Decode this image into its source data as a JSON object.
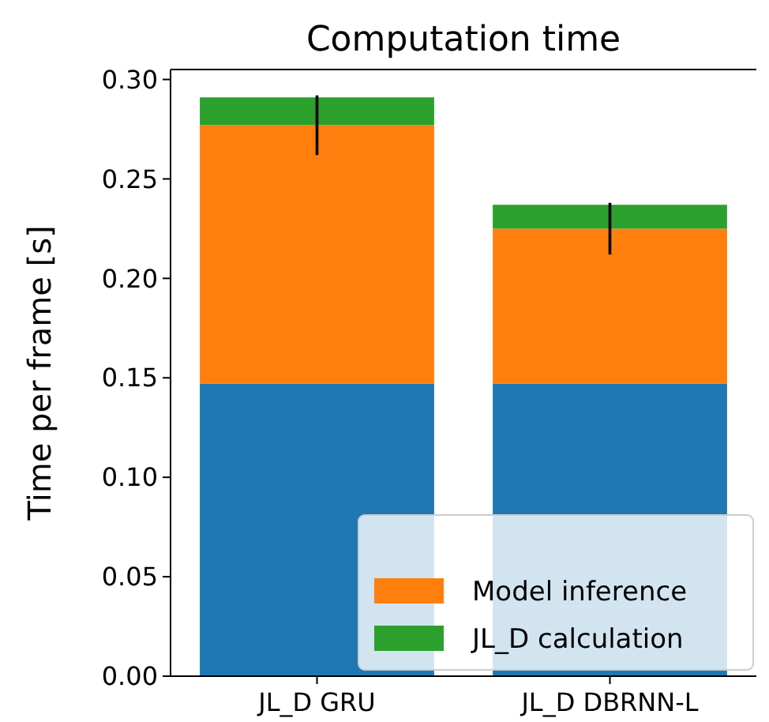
{
  "chart_data": {
    "type": "bar",
    "title": "Computation time",
    "ylabel": "Time per frame [s]",
    "categories": [
      "JL_D GRU",
      "JL_D DBRNN-L"
    ],
    "stacked": true,
    "series": [
      {
        "color": "#1f77b4",
        "values": [
          0.147,
          0.147
        ]
      },
      {
        "name": "Model inference",
        "color": "#ff7f0e",
        "values": [
          0.13,
          0.078
        ],
        "errors": [
          0.015,
          0.013
        ]
      },
      {
        "name": "JL_D calculation",
        "color": "#2ca02c",
        "values": [
          0.014,
          0.012
        ]
      }
    ],
    "ylim": [
      0,
      0.305
    ],
    "yticks": [
      {
        "value": 0,
        "label": "0.00"
      },
      {
        "value": 0.05,
        "label": "0.05"
      },
      {
        "value": 0.1,
        "label": "0.10"
      },
      {
        "value": 0.15,
        "label": "0.15"
      },
      {
        "value": 0.2,
        "label": "0.20"
      },
      {
        "value": 0.25,
        "label": "0.25"
      },
      {
        "value": 0.3,
        "label": "0.30"
      }
    ],
    "legend": "bottom right"
  }
}
